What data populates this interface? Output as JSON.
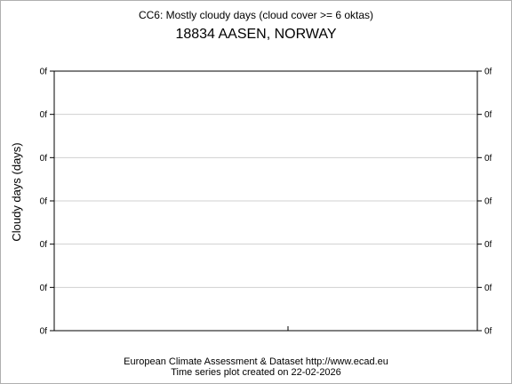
{
  "chart_data": {
    "type": "line",
    "title": "CC6: Mostly cloudy days (cloud cover >= 6 oktas)",
    "subtitle": "18834 AASEN, NORWAY",
    "ylabel": "Cloudy days (days)",
    "xlabel": "",
    "y_tick_labels": [
      "0f",
      "0f",
      "0f",
      "0f",
      "0f",
      "0f",
      "0f"
    ],
    "x_tick_labels": [],
    "series": [],
    "grid": true,
    "legend": "none"
  },
  "footer": {
    "line1": "European Climate Assessment & Dataset  http://www.ecad.eu",
    "line2": "Time series plot created on 22-02-2026"
  }
}
